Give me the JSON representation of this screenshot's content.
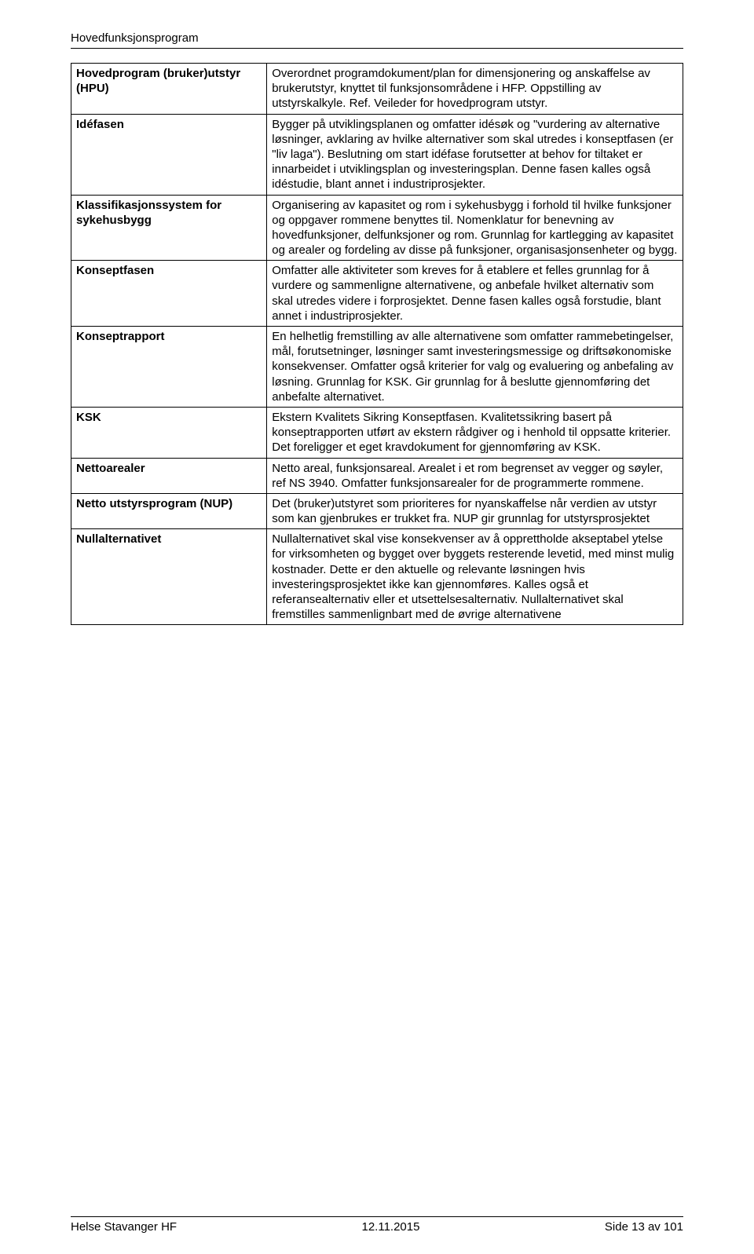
{
  "header": {
    "title": "Hovedfunksjonsprogram"
  },
  "rows": [
    {
      "term": "Hovedprogram (bruker)utstyr (HPU)",
      "def": "Overordnet programdokument/plan for dimensjonering og anskaffelse av brukerutstyr, knyttet til funksjonsområdene i HFP. Oppstilling av utstyrskalkyle. Ref. Veileder for hovedprogram utstyr."
    },
    {
      "term": "Idéfasen",
      "def": "Bygger på utviklingsplanen og omfatter idésøk og \"vurdering av alternative løsninger, avklaring av hvilke alternativer som skal utredes i konseptfasen (er \"liv laga\"). Beslutning om start idéfase forutsetter at behov for tiltaket er innarbeidet i utviklingsplan og investeringsplan. Denne fasen kalles også idéstudie, blant annet i industriprosjekter."
    },
    {
      "term": "Klassifikasjonssystem for sykehusbygg",
      "def": "Organisering av kapasitet og rom i sykehusbygg i forhold til hvilke funksjoner og oppgaver rommene benyttes til. Nomenklatur for benevning av hovedfunksjoner, delfunksjoner og rom. Grunnlag for kartlegging av kapasitet og arealer og fordeling av disse på funksjoner, organisasjonsenheter og bygg."
    },
    {
      "term": "Konseptfasen",
      "def": "Omfatter alle aktiviteter som kreves for å etablere et felles grunnlag for å vurdere og sammenligne alternativene, og anbefale hvilket alternativ som skal utredes videre i forprosjektet. Denne fasen kalles også forstudie, blant annet i industriprosjekter."
    },
    {
      "term": "Konseptrapport",
      "def": "En helhetlig fremstilling av alle alternativene som omfatter rammebetingelser, mål, forutsetninger, løsninger samt investeringsmessige og driftsøkonomiske konsekvenser. Omfatter også kriterier for valg og evaluering og anbefaling av løsning. Grunnlag for KSK. Gir grunnlag for å beslutte gjennomføring det anbefalte alternativet."
    },
    {
      "term": "KSK",
      "def": "Ekstern Kvalitets Sikring Konseptfasen. Kvalitetssikring basert på konseptrapporten utført av ekstern rådgiver og i henhold til oppsatte kriterier. Det foreligger et eget kravdokument for gjennomføring av KSK."
    },
    {
      "term": "Nettoarealer",
      "def": "Netto areal, funksjonsareal. Arealet i et rom begrenset av vegger og søyler, ref NS 3940. Omfatter funksjonsarealer for de programmerte rommene."
    },
    {
      "term": "Netto utstyrsprogram (NUP)",
      "def": "Det (bruker)utstyret som prioriteres for nyanskaffelse når verdien av utstyr som kan gjenbrukes er trukket fra. NUP gir grunnlag for utstyrsprosjektet"
    },
    {
      "term": "Nullalternativet",
      "def": "Nullalternativet skal vise konsekvenser av å opprettholde akseptabel ytelse for virksomheten og bygget over byggets resterende levetid, med minst mulig kostnader. Dette er den aktuelle og relevante løsningen hvis investeringsprosjektet ikke kan gjennomføres. Kalles også et referansealternativ eller et utsettelsesalternativ.\nNullalternativet skal fremstilles sammenlignbart med de øvrige alternativene"
    }
  ],
  "footer": {
    "left": "Helse Stavanger HF",
    "center": "12.11.2015",
    "right": "Side 13 av 101"
  }
}
